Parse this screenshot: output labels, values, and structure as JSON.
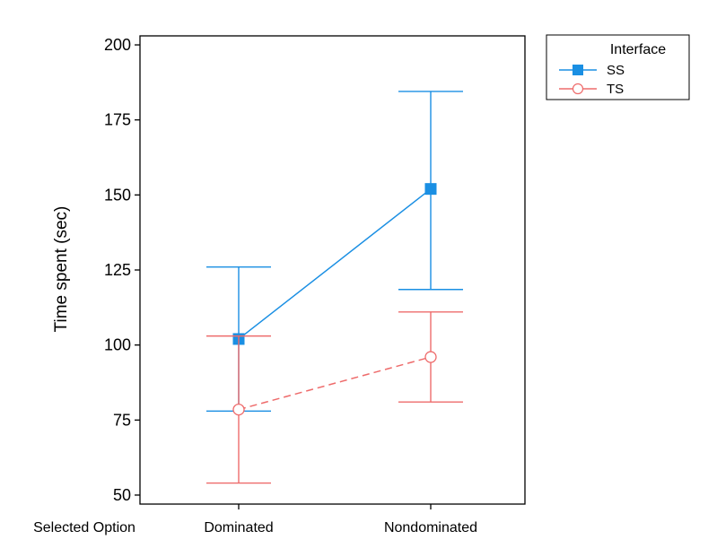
{
  "chart_data": {
    "type": "line",
    "title": "",
    "xlabel": "Selected Option",
    "ylabel": "Time spent (sec)",
    "categories": [
      "Dominated",
      "Nondominated"
    ],
    "ylim": [
      47,
      203
    ],
    "yticks": [
      50,
      75,
      100,
      125,
      150,
      175,
      200
    ],
    "grid": false,
    "legend": {
      "title": "Interface",
      "placement": "outside-top-right"
    },
    "series": [
      {
        "name": "SS",
        "color": "#1a8fe3",
        "marker": "filled-square",
        "line_style": "solid",
        "values": [
          102,
          152
        ],
        "error_low": [
          78,
          118.5
        ],
        "error_high": [
          126,
          184.5
        ]
      },
      {
        "name": "TS",
        "color": "#ee6b6b",
        "marker": "open-circle",
        "line_style": "dashed",
        "values": [
          78.5,
          96
        ],
        "error_low": [
          54,
          81
        ],
        "error_high": [
          103,
          111
        ]
      }
    ]
  }
}
